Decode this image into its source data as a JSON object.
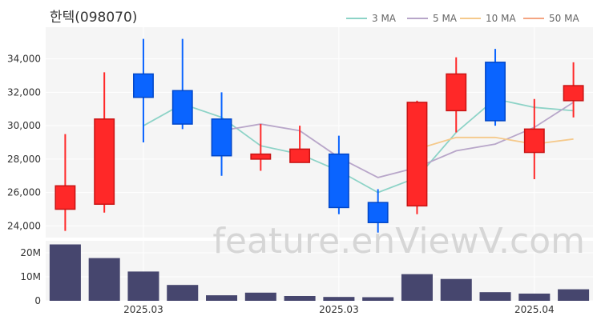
{
  "chart_data": {
    "type": "candlestick",
    "title": "한텍(098070)",
    "watermark": "feature.enViewV.com",
    "legend": [
      {
        "name": "3 MA",
        "color": "#8dd3c7"
      },
      {
        "name": "5 MA",
        "color": "#b8a6c9"
      },
      {
        "name": "10 MA",
        "color": "#f5c98b"
      },
      {
        "name": "50 MA",
        "color": "#f4a582"
      }
    ],
    "x_tick_labels": [
      {
        "label": "2025.03",
        "index": 2
      },
      {
        "label": "2025.03",
        "index": 7
      },
      {
        "label": "2025.04",
        "index": 12
      }
    ],
    "price_axis": {
      "ticks": [
        24000,
        26000,
        28000,
        30000,
        32000,
        34000
      ],
      "tick_labels": [
        "24,000",
        "26,000",
        "28,000",
        "30,000",
        "32,000",
        "34,000"
      ],
      "ylim": [
        23300,
        35900
      ]
    },
    "volume_axis": {
      "ticks": [
        0,
        10000000,
        20000000
      ],
      "tick_labels": [
        "0",
        "10M",
        "20M"
      ],
      "ylim": [
        0,
        25000000
      ]
    },
    "candles": [
      {
        "open": 25000,
        "close": 26400,
        "high": 29500,
        "low": 23700
      },
      {
        "open": 25300,
        "close": 30400,
        "high": 33200,
        "low": 24800
      },
      {
        "open": 33100,
        "close": 31700,
        "high": 35200,
        "low": 29000
      },
      {
        "open": 32100,
        "close": 30100,
        "high": 35200,
        "low": 29800
      },
      {
        "open": 30400,
        "close": 28200,
        "high": 32000,
        "low": 27000
      },
      {
        "open": 28000,
        "close": 28300,
        "high": 30100,
        "low": 27300
      },
      {
        "open": 27800,
        "close": 28600,
        "high": 30000,
        "low": 27800
      },
      {
        "open": 28300,
        "close": 25100,
        "high": 29400,
        "low": 24700
      },
      {
        "open": 25400,
        "close": 24200,
        "high": 26200,
        "low": 23600
      },
      {
        "open": 25200,
        "close": 31400,
        "high": 31500,
        "low": 24700
      },
      {
        "open": 30900,
        "close": 33100,
        "high": 34100,
        "low": 29600
      },
      {
        "open": 33800,
        "close": 30300,
        "high": 34600,
        "low": 30000
      },
      {
        "open": 28400,
        "close": 29800,
        "high": 31600,
        "low": 26800
      },
      {
        "open": 31500,
        "close": 32400,
        "high": 33800,
        "low": 30500
      }
    ],
    "volume": [
      23500000,
      17800000,
      12200000,
      6600000,
      2300000,
      3400000,
      2000000,
      1600000,
      1500000,
      11100000,
      9100000,
      3600000,
      3000000,
      4800000
    ],
    "ma3": [
      null,
      null,
      30000,
      31300,
      30500,
      28800,
      28300,
      27300,
      26000,
      26900,
      29600,
      31600,
      31100,
      30900
    ],
    "ma5": [
      null,
      null,
      null,
      null,
      29700,
      30100,
      29700,
      28100,
      26900,
      27500,
      28500,
      28900,
      29900,
      31400
    ],
    "ma10": [
      null,
      null,
      null,
      null,
      null,
      null,
      null,
      null,
      null,
      28600,
      29300,
      29300,
      28900,
      29200
    ],
    "ma50": [],
    "colors": {
      "up": "#ff2828",
      "up_border": "#c81414",
      "down": "#0a64ff",
      "down_border": "#0046c8",
      "volume": "#46466e",
      "grid": "#ffffff",
      "plot_bg": "#f5f5f5"
    }
  }
}
